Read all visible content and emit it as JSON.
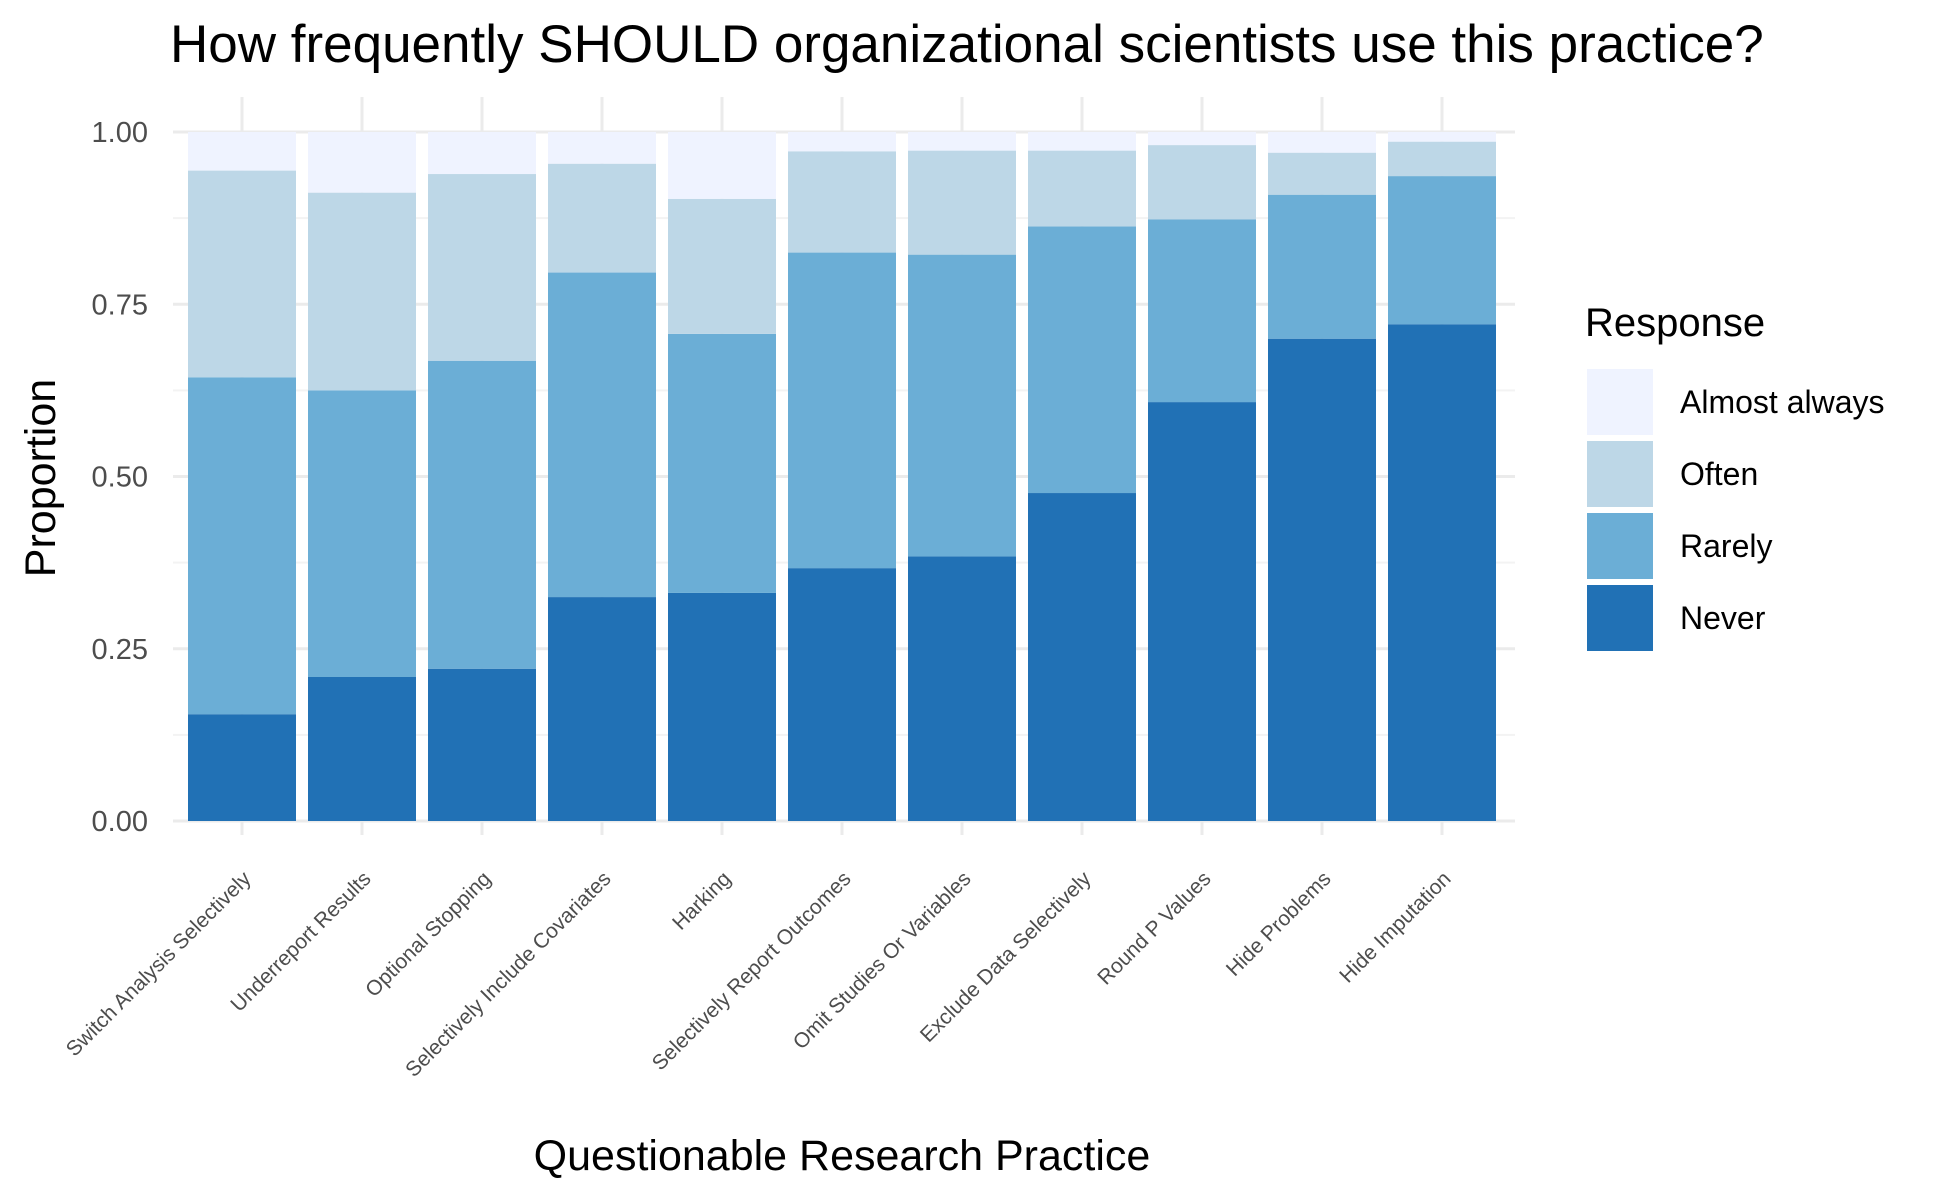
{
  "chart_data": {
    "type": "bar",
    "stacked": true,
    "title": "How frequently SHOULD organizational scientists use this practice?",
    "xlabel": "Questionable Research Practice",
    "ylabel": "Proportion",
    "ylim": [
      0,
      1
    ],
    "yticks": [
      "0.00",
      "0.25",
      "0.50",
      "0.75",
      "1.00"
    ],
    "grid": true,
    "legend": {
      "title": "Response",
      "position": "right",
      "entries": [
        "Almost always",
        "Often",
        "Rarely",
        "Never"
      ]
    },
    "categories": [
      "Switch Analysis Selectively",
      "Underreport Results",
      "Optional Stopping",
      "Selectively Include Covariates",
      "Harking",
      "Selectively Report Outcomes",
      "Omit Studies Or Variables",
      "Exclude Data Selectively",
      "Round P Values",
      "Hide Problems",
      "Hide Imputation"
    ],
    "series": [
      {
        "name": "Never",
        "color": "#2171b5",
        "values": [
          0.155,
          0.209,
          0.221,
          0.325,
          0.331,
          0.367,
          0.384,
          0.476,
          0.608,
          0.7,
          0.721
        ]
      },
      {
        "name": "Rarely",
        "color": "#6baed6",
        "values": [
          0.489,
          0.416,
          0.447,
          0.471,
          0.376,
          0.458,
          0.438,
          0.387,
          0.265,
          0.209,
          0.215
        ]
      },
      {
        "name": "Often",
        "color": "#bdd7e7",
        "values": [
          0.3,
          0.287,
          0.271,
          0.158,
          0.196,
          0.147,
          0.151,
          0.11,
          0.108,
          0.061,
          0.05
        ]
      },
      {
        "name": "Almost always",
        "color": "#eff3ff",
        "values": [
          0.056,
          0.088,
          0.061,
          0.046,
          0.097,
          0.028,
          0.027,
          0.027,
          0.019,
          0.03,
          0.014
        ]
      }
    ]
  }
}
